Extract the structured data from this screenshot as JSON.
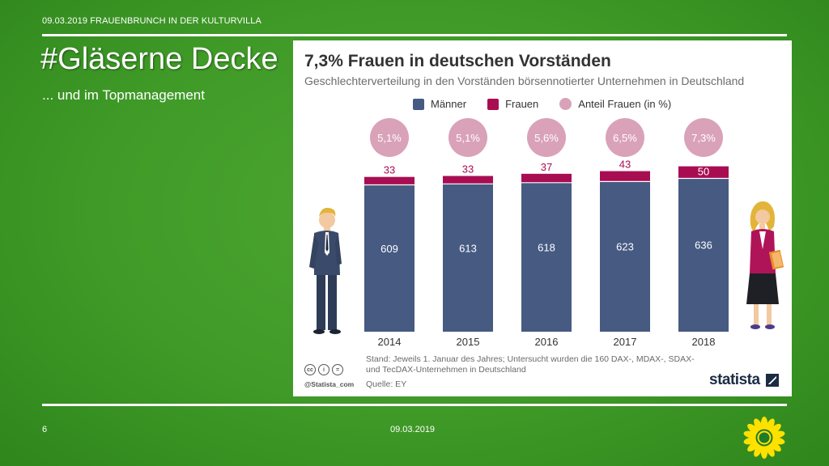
{
  "slide": {
    "header_text": "09.03.2019 FRAUENBRUNCH IN DER KULTURVILLA",
    "title": "#Gläserne Decke",
    "subtitle": "... und im Topmanagement",
    "page_number": "6",
    "footer_date": "09.03.2019"
  },
  "card": {
    "note": "Stand: Jeweils 1. Januar des Jahres; Untersucht wurden die 160 DAX-, MDAX-, SDAX- und TecDAX-Unternehmen in Deutschland",
    "source": "Quelle: EY",
    "handle": "@Statista_com",
    "brand": "statista"
  },
  "colors": {
    "maenner": "#465a82",
    "frauen": "#a80d52",
    "anteil": "#d9a2b8"
  },
  "chart_data": {
    "type": "bar",
    "stacked": true,
    "title": "7,3% Frauen in deutschen Vorständen",
    "subtitle": "Geschlechterverteilung in den Vorständen börsennotierter Unternehmen in Deutschland",
    "legend_position": "top",
    "categories": [
      "2014",
      "2015",
      "2016",
      "2017",
      "2018"
    ],
    "series": [
      {
        "name": "Männer",
        "values": [
          609,
          613,
          618,
          623,
          636
        ]
      },
      {
        "name": "Frauen",
        "values": [
          33,
          33,
          37,
          43,
          50
        ]
      }
    ],
    "share": {
      "name": "Anteil Frauen (in %)",
      "labels": [
        "5,1%",
        "5,1%",
        "5,6%",
        "6,5%",
        "7,3%"
      ]
    }
  }
}
